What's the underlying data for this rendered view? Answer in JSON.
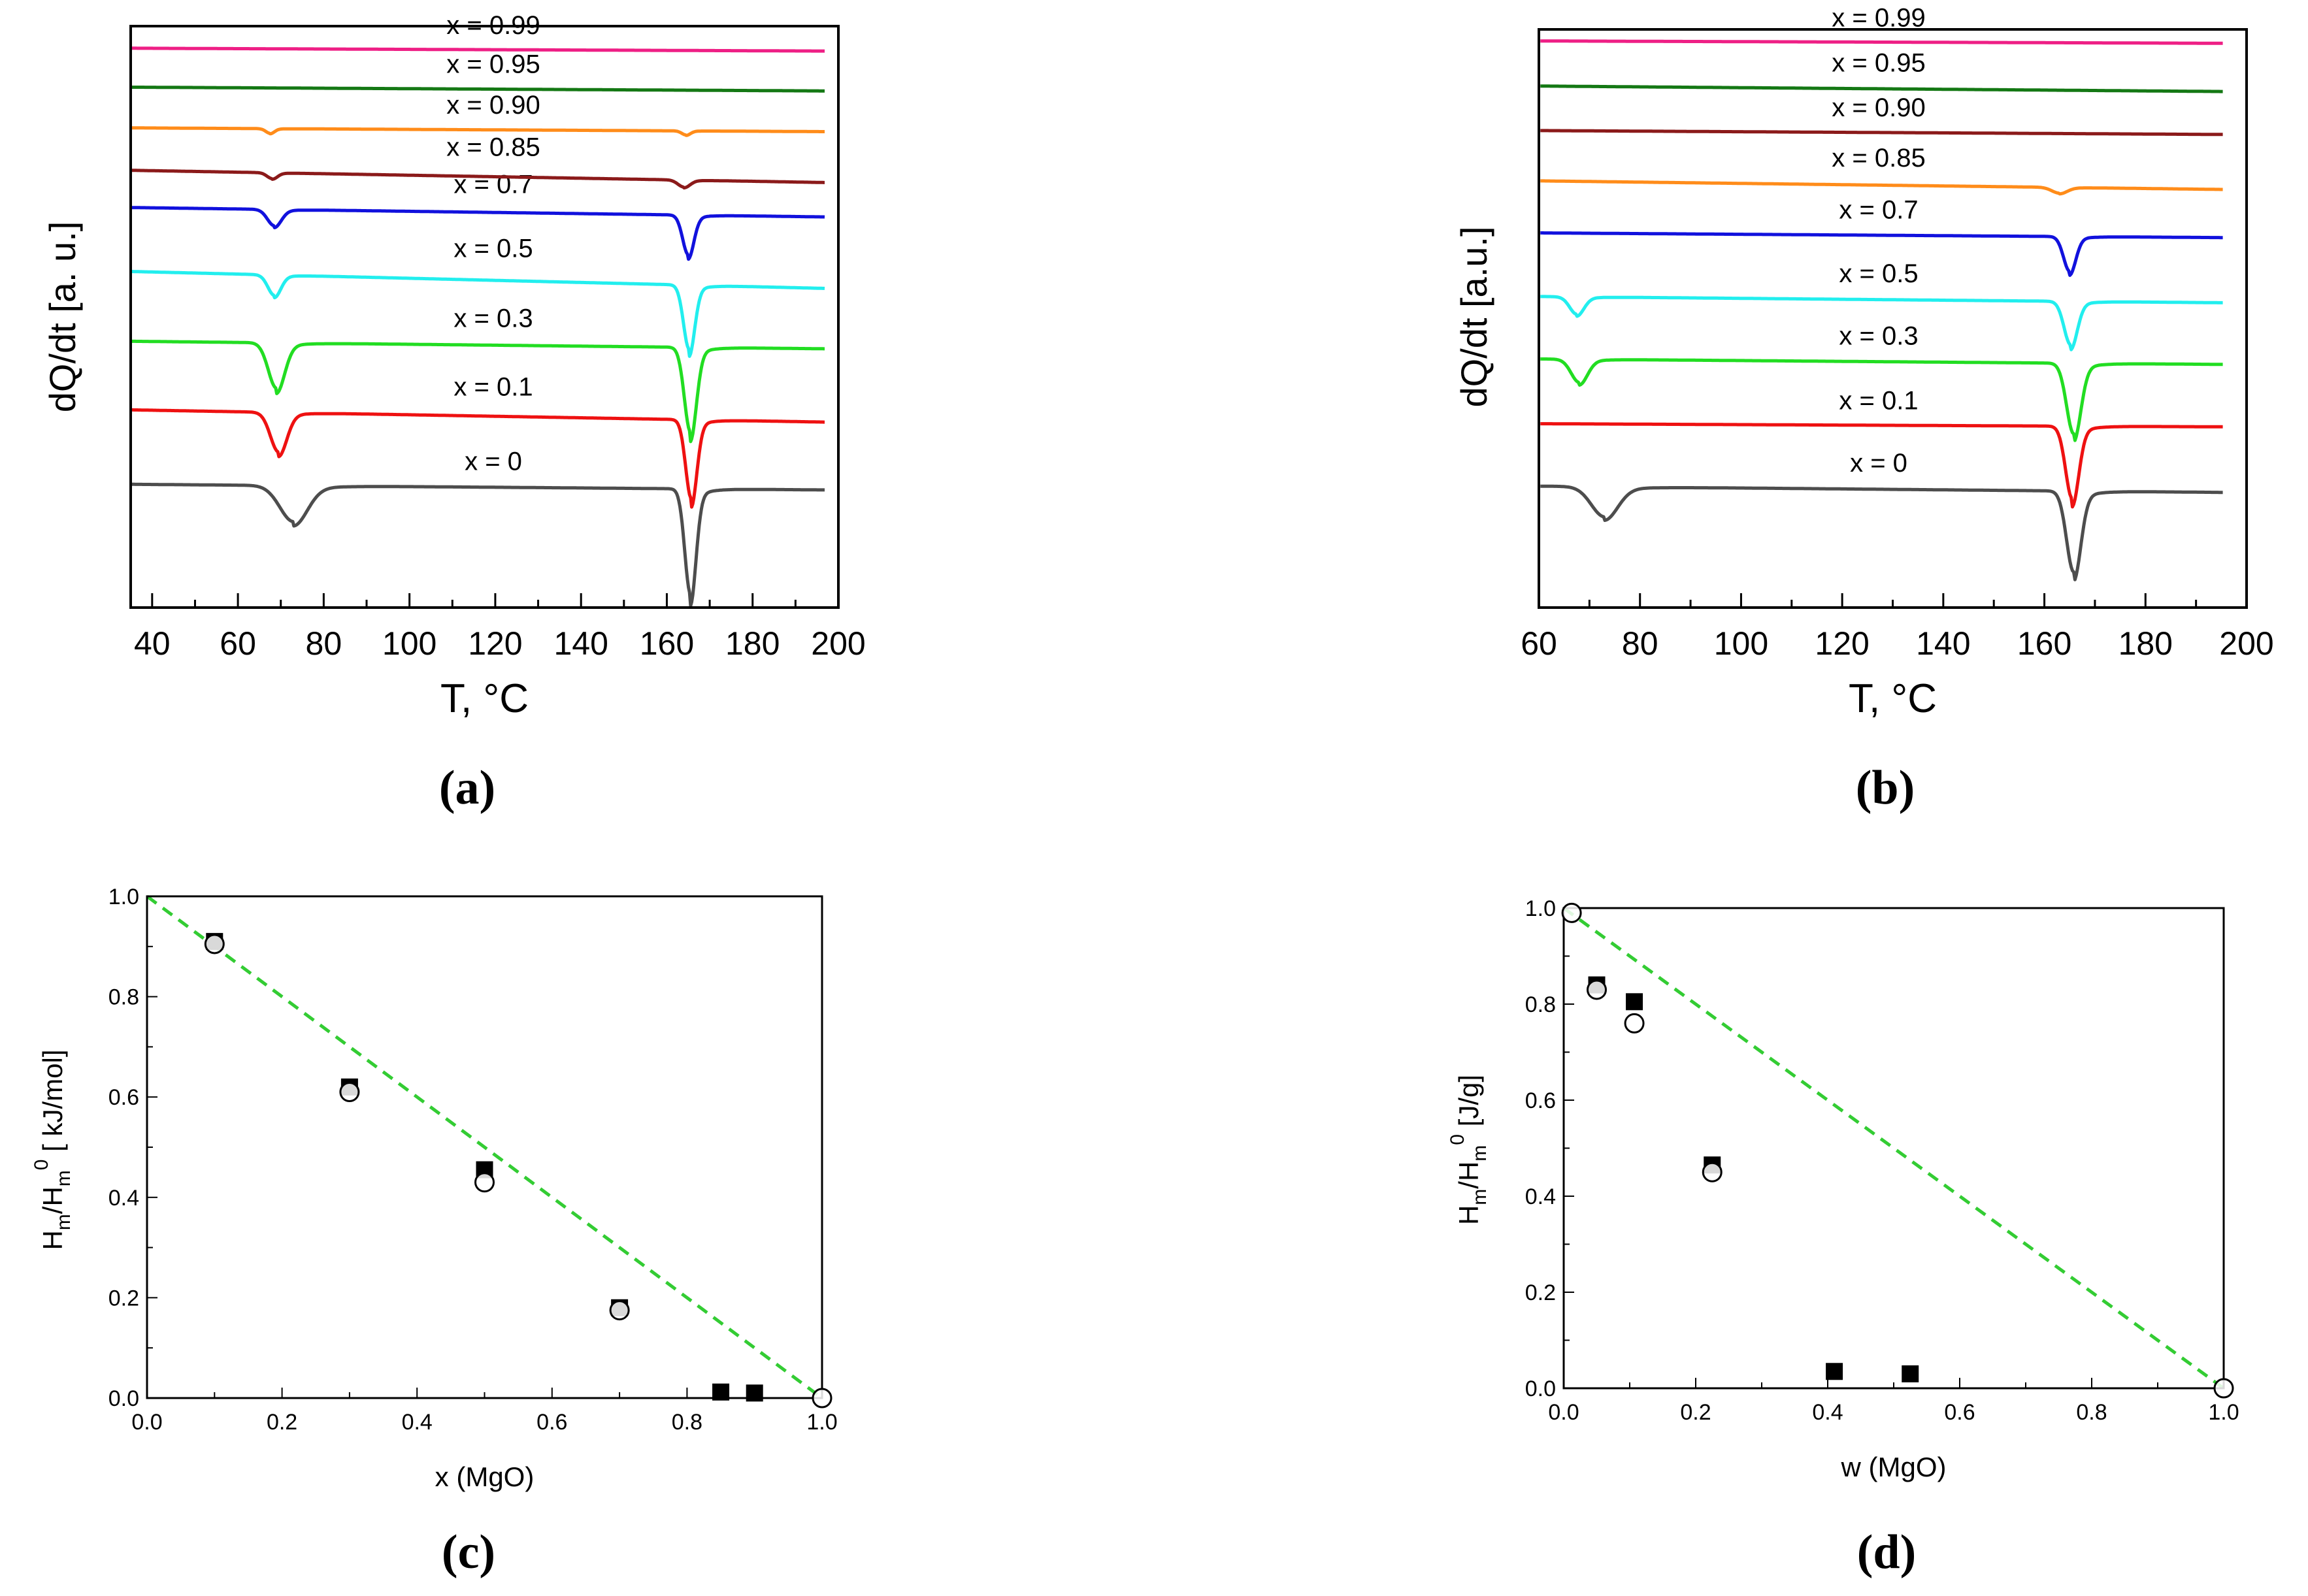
{
  "figure": {
    "panels": [
      "(a)",
      "(b)",
      "(c)",
      "(d)"
    ]
  },
  "chart_data": [
    {
      "id": "a",
      "type": "line",
      "panel_label": "(a)",
      "xlabel": "T, °C",
      "ylabel": "dQ/dt [a. u.]",
      "xlim": [
        35,
        200
      ],
      "ylim": [
        0,
        10
      ],
      "x_ticks": [
        "40",
        "60",
        "80",
        "100",
        "120",
        "140",
        "160",
        "180",
        "200"
      ],
      "x_tick_values": [
        40,
        60,
        80,
        100,
        120,
        140,
        160,
        180,
        200
      ],
      "series": [
        {
          "name": "x = 0",
          "color": "#4d4d4d",
          "baseline": 2.12,
          "slope": -0.0006,
          "dips": [
            {
              "x": 73,
              "depth": 0.62,
              "width": 3.2
            },
            {
              "x": 165.5,
              "depth": 1.8,
              "width": 1.3
            }
          ]
        },
        {
          "name": "x = 0.1",
          "color": "#ee1111",
          "baseline": 3.4,
          "slope": -0.0013,
          "dips": [
            {
              "x": 69.5,
              "depth": 0.68,
              "width": 1.9
            },
            {
              "x": 165.7,
              "depth": 1.35,
              "width": 1.3
            }
          ]
        },
        {
          "name": "x = 0.3",
          "color": "#22dd22",
          "baseline": 4.58,
          "slope": -0.0008,
          "dips": [
            {
              "x": 69,
              "depth": 0.78,
              "width": 1.9
            },
            {
              "x": 165.5,
              "depth": 1.45,
              "width": 1.4
            }
          ]
        },
        {
          "name": "x = 0.5",
          "color": "#22eeee",
          "baseline": 5.78,
          "slope": -0.0018,
          "dips": [
            {
              "x": 68.5,
              "depth": 0.35,
              "width": 1.5
            },
            {
              "x": 165.2,
              "depth": 1.1,
              "width": 1.3
            }
          ]
        },
        {
          "name": "x = 0.7",
          "color": "#1111dd",
          "baseline": 6.88,
          "slope": -0.001,
          "dips": [
            {
              "x": 68.5,
              "depth": 0.28,
              "width": 1.6
            },
            {
              "x": 165,
              "depth": 0.68,
              "width": 1.3
            }
          ]
        },
        {
          "name": "x = 0.85",
          "color": "#8b1a1a",
          "baseline": 7.52,
          "slope": -0.0013,
          "dips": [
            {
              "x": 68,
              "depth": 0.1,
              "width": 1.2
            },
            {
              "x": 164,
              "depth": 0.12,
              "width": 1.4
            }
          ]
        },
        {
          "name": "x = 0.90",
          "color": "#ff8c1a",
          "baseline": 8.25,
          "slope": -0.0004,
          "dips": [
            {
              "x": 67.5,
              "depth": 0.08,
              "width": 1.0
            },
            {
              "x": 164.5,
              "depth": 0.07,
              "width": 1.0
            }
          ]
        },
        {
          "name": "x = 0.95",
          "color": "#147814",
          "baseline": 8.95,
          "slope": -0.0004,
          "dips": []
        },
        {
          "name": "x = 0.99",
          "color": "#ee1f85",
          "baseline": 9.62,
          "slope": -0.0003,
          "dips": []
        }
      ]
    },
    {
      "id": "b",
      "type": "line",
      "panel_label": "(b)",
      "xlabel": "T, °C",
      "ylabel": "dQ/dt [a.u.]",
      "xlim": [
        60,
        200
      ],
      "ylim": [
        0,
        10
      ],
      "x_ticks": [
        "60",
        "80",
        "100",
        "120",
        "140",
        "160",
        "180",
        "200"
      ],
      "x_tick_values": [
        60,
        80,
        100,
        120,
        140,
        160,
        180,
        200
      ],
      "series": [
        {
          "name": "x = 0",
          "color": "#4d4d4d",
          "baseline": 2.1,
          "slope": -0.0008,
          "dips": [
            {
              "x": 73,
              "depth": 0.52,
              "width": 2.6
            },
            {
              "x": 165.8,
              "depth": 1.4,
              "width": 1.4
            }
          ]
        },
        {
          "name": "x = 0.1",
          "color": "#ee1111",
          "baseline": 3.18,
          "slope": -0.0004,
          "dips": [
            {
              "x": 165.5,
              "depth": 1.25,
              "width": 1.3
            }
          ]
        },
        {
          "name": "x = 0.3",
          "color": "#22dd22",
          "baseline": 4.3,
          "slope": -0.0007,
          "dips": [
            {
              "x": 68,
              "depth": 0.4,
              "width": 1.6
            },
            {
              "x": 165.8,
              "depth": 1.22,
              "width": 1.4
            }
          ]
        },
        {
          "name": "x = 0.5",
          "color": "#22eeee",
          "baseline": 5.38,
          "slope": -0.0008,
          "dips": [
            {
              "x": 67.5,
              "depth": 0.3,
              "width": 1.4
            },
            {
              "x": 165.2,
              "depth": 0.75,
              "width": 1.3
            }
          ]
        },
        {
          "name": "x = 0.7",
          "color": "#1111dd",
          "baseline": 6.48,
          "slope": -0.0006,
          "dips": [
            {
              "x": 165,
              "depth": 0.6,
              "width": 1.2
            }
          ]
        },
        {
          "name": "x = 0.85",
          "color": "#ff8c1a",
          "baseline": 7.38,
          "slope": -0.0011,
          "dips": [
            {
              "x": 163,
              "depth": 0.1,
              "width": 1.5
            }
          ]
        },
        {
          "name": "x = 0.90",
          "color": "#8b1a1a",
          "baseline": 8.25,
          "slope": -0.0005,
          "dips": []
        },
        {
          "name": "x = 0.95",
          "color": "#147814",
          "baseline": 9.02,
          "slope": -0.0007,
          "dips": []
        },
        {
          "name": "x = 0.99",
          "color": "#ee1f85",
          "baseline": 9.8,
          "slope": -0.0003,
          "dips": []
        }
      ]
    },
    {
      "id": "c",
      "type": "scatter",
      "panel_label": "(c)",
      "xlabel": "x (MgO)",
      "ylabel": "Hm/Hm0 [ kJ/mol]",
      "ylabel_parts": {
        "H": "H",
        "sub": "m",
        "slash": "/H",
        "sup": "0",
        "unit": " [ kJ/mol]"
      },
      "xlim": [
        0,
        1.0
      ],
      "ylim": [
        0,
        1.0
      ],
      "x_ticks": [
        "0.0",
        "0.2",
        "0.4",
        "0.6",
        "0.8",
        "1.0"
      ],
      "x_tick_values": [
        0,
        0.2,
        0.4,
        0.6,
        0.8,
        1.0
      ],
      "y_ticks": [
        "0.0",
        "0.2",
        "0.4",
        "0.6",
        "0.8",
        "1.0"
      ],
      "y_tick_values": [
        0,
        0.2,
        0.4,
        0.6,
        0.8,
        1.0
      ],
      "series": [
        {
          "name": "filled squares",
          "marker": "square-filled",
          "x": [
            0.1,
            0.3,
            0.5,
            0.7,
            0.85,
            0.9
          ],
          "y": [
            0.91,
            0.62,
            0.455,
            0.18,
            0.012,
            0.01
          ]
        },
        {
          "name": "open circles",
          "marker": "circle-open",
          "x": [
            0.1,
            0.3,
            0.5,
            0.7,
            1.0
          ],
          "y": [
            0.905,
            0.61,
            0.43,
            0.175,
            0.0
          ]
        }
      ],
      "reference_line": {
        "color": "#33cc33",
        "style": "dashed",
        "x": [
          0,
          1.0
        ],
        "y": [
          1.0,
          0.0
        ]
      }
    },
    {
      "id": "d",
      "type": "scatter",
      "panel_label": "(d)",
      "xlabel": "w (MgO)",
      "ylabel": "Hm/Hm0 [J/g]",
      "ylabel_parts": {
        "H": "H",
        "sub": "m",
        "slash": "/H",
        "sup": "0",
        "unit": " [J/g]"
      },
      "xlim": [
        0,
        1.0
      ],
      "ylim": [
        0,
        1.0
      ],
      "x_ticks": [
        "0.0",
        "0.2",
        "0.4",
        "0.6",
        "0.8",
        "1.0"
      ],
      "x_tick_values": [
        0,
        0.2,
        0.4,
        0.6,
        0.8,
        1.0
      ],
      "y_ticks": [
        "0.0",
        "0.2",
        "0.4",
        "0.6",
        "0.8",
        "1.0"
      ],
      "y_tick_values": [
        0,
        0.2,
        0.4,
        0.6,
        0.8,
        1.0
      ],
      "series": [
        {
          "name": "filled squares",
          "marker": "square-filled",
          "x": [
            0.05,
            0.107,
            0.225,
            0.41,
            0.525
          ],
          "y": [
            0.84,
            0.805,
            0.465,
            0.035,
            0.03
          ]
        },
        {
          "name": "open circles",
          "marker": "circle-open",
          "x": [
            0.012,
            0.05,
            0.107,
            0.225,
            1.0
          ],
          "y": [
            0.99,
            0.83,
            0.76,
            0.45,
            0.0
          ]
        }
      ],
      "reference_line": {
        "color": "#33cc33",
        "style": "dashed",
        "x": [
          0,
          1.0
        ],
        "y": [
          1.0,
          0.0
        ]
      }
    }
  ]
}
